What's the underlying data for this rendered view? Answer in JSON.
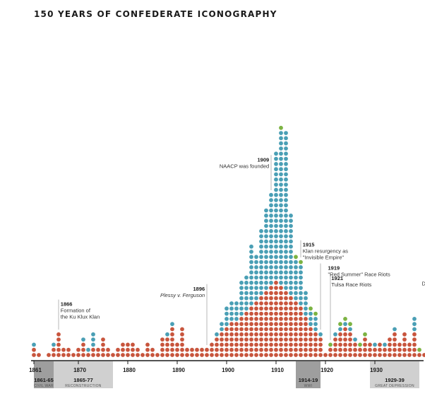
{
  "chart_data": {
    "type": "dot-histogram",
    "title": "150 YEARS OF CONFEDERATE ICONOGRAPHY",
    "colors": {
      "red": "#c8553d",
      "blue": "#4a9fb5",
      "green": "#7cb342",
      "axis": "#1a1a1a",
      "era": "#d0d0d0",
      "era_dark": "#9e9e9e",
      "guide": "#999999"
    },
    "x_range": [
      1861,
      1940
    ],
    "ticks": [
      "1861",
      "1870",
      "1880",
      "1890",
      "1900",
      "1910",
      "1920",
      "1930"
    ],
    "tick_years": [
      1861,
      1870,
      1880,
      1890,
      1900,
      1910,
      1920,
      1930
    ],
    "eras": [
      {
        "start": 1861,
        "end": 1865,
        "label": "1861-65",
        "sub": "CIVIL WAR",
        "shade": "dark"
      },
      {
        "start": 1865,
        "end": 1877,
        "label": "1865-77",
        "sub": "RECONSTRUCTION",
        "shade": "light"
      },
      {
        "start": 1914,
        "end": 1919,
        "label": "1914-19",
        "sub": "WWI",
        "shade": "dark"
      },
      {
        "start": 1929,
        "end": 1939,
        "label": "1929-39",
        "sub": "GREAT DEPRESSION",
        "shade": "light"
      }
    ],
    "columns": [
      {
        "year": 1861,
        "red": 2,
        "blue": 1,
        "green": 0
      },
      {
        "year": 1862,
        "red": 1,
        "blue": 0,
        "green": 0
      },
      {
        "year": 1864,
        "red": 1,
        "blue": 0,
        "green": 0
      },
      {
        "year": 1865,
        "red": 2,
        "blue": 1,
        "green": 0
      },
      {
        "year": 1866,
        "red": 5,
        "blue": 0,
        "green": 0
      },
      {
        "year": 1867,
        "red": 2,
        "blue": 0,
        "green": 0
      },
      {
        "year": 1868,
        "red": 2,
        "blue": 0,
        "green": 0
      },
      {
        "year": 1869,
        "red": 1,
        "blue": 0,
        "green": 0
      },
      {
        "year": 1870,
        "red": 2,
        "blue": 0,
        "green": 0
      },
      {
        "year": 1871,
        "red": 3,
        "blue": 1,
        "green": 0
      },
      {
        "year": 1872,
        "red": 1,
        "blue": 1,
        "green": 0
      },
      {
        "year": 1873,
        "red": 2,
        "blue": 3,
        "green": 0
      },
      {
        "year": 1874,
        "red": 2,
        "blue": 0,
        "green": 0
      },
      {
        "year": 1875,
        "red": 4,
        "blue": 0,
        "green": 0
      },
      {
        "year": 1876,
        "red": 2,
        "blue": 0,
        "green": 0
      },
      {
        "year": 1877,
        "red": 1,
        "blue": 0,
        "green": 0
      },
      {
        "year": 1878,
        "red": 2,
        "blue": 0,
        "green": 0
      },
      {
        "year": 1879,
        "red": 3,
        "blue": 0,
        "green": 0
      },
      {
        "year": 1880,
        "red": 3,
        "blue": 0,
        "green": 0
      },
      {
        "year": 1881,
        "red": 3,
        "blue": 0,
        "green": 0
      },
      {
        "year": 1882,
        "red": 2,
        "blue": 0,
        "green": 0
      },
      {
        "year": 1883,
        "red": 1,
        "blue": 0,
        "green": 0
      },
      {
        "year": 1884,
        "red": 3,
        "blue": 0,
        "green": 0
      },
      {
        "year": 1885,
        "red": 2,
        "blue": 0,
        "green": 0
      },
      {
        "year": 1886,
        "red": 1,
        "blue": 0,
        "green": 0
      },
      {
        "year": 1887,
        "red": 4,
        "blue": 0,
        "green": 0
      },
      {
        "year": 1888,
        "red": 4,
        "blue": 1,
        "green": 0
      },
      {
        "year": 1889,
        "red": 6,
        "blue": 1,
        "green": 0
      },
      {
        "year": 1890,
        "red": 3,
        "blue": 0,
        "green": 0
      },
      {
        "year": 1891,
        "red": 6,
        "blue": 0,
        "green": 0
      },
      {
        "year": 1892,
        "red": 2,
        "blue": 0,
        "green": 0
      },
      {
        "year": 1893,
        "red": 2,
        "blue": 0,
        "green": 0
      },
      {
        "year": 1894,
        "red": 2,
        "blue": 0,
        "green": 0
      },
      {
        "year": 1895,
        "red": 2,
        "blue": 0,
        "green": 0
      },
      {
        "year": 1896,
        "red": 2,
        "blue": 0,
        "green": 0
      },
      {
        "year": 1897,
        "red": 3,
        "blue": 0,
        "green": 0
      },
      {
        "year": 1898,
        "red": 4,
        "blue": 1,
        "green": 0
      },
      {
        "year": 1899,
        "red": 5,
        "blue": 2,
        "green": 0
      },
      {
        "year": 1900,
        "red": 6,
        "blue": 4,
        "green": 0
      },
      {
        "year": 1901,
        "red": 7,
        "blue": 4,
        "green": 0
      },
      {
        "year": 1902,
        "red": 7,
        "blue": 4,
        "green": 0
      },
      {
        "year": 1903,
        "red": 8,
        "blue": 7,
        "green": 0
      },
      {
        "year": 1904,
        "red": 9,
        "blue": 7,
        "green": 0
      },
      {
        "year": 1905,
        "red": 10,
        "blue": 12,
        "green": 0
      },
      {
        "year": 1906,
        "red": 11,
        "blue": 9,
        "green": 0
      },
      {
        "year": 1907,
        "red": 12,
        "blue": 13,
        "green": 0
      },
      {
        "year": 1908,
        "red": 13,
        "blue": 16,
        "green": 0
      },
      {
        "year": 1909,
        "red": 14,
        "blue": 18,
        "green": 0
      },
      {
        "year": 1910,
        "red": 15,
        "blue": 25,
        "green": 0
      },
      {
        "year": 1911,
        "red": 14,
        "blue": 30,
        "green": 1
      },
      {
        "year": 1912,
        "red": 13,
        "blue": 31,
        "green": 0
      },
      {
        "year": 1913,
        "red": 12,
        "blue": 16,
        "green": 0
      },
      {
        "year": 1914,
        "red": 11,
        "blue": 8,
        "green": 1
      },
      {
        "year": 1915,
        "red": 10,
        "blue": 8,
        "green": 1
      },
      {
        "year": 1916,
        "red": 8,
        "blue": 5,
        "green": 0
      },
      {
        "year": 1917,
        "red": 6,
        "blue": 3,
        "green": 1
      },
      {
        "year": 1918,
        "red": 5,
        "blue": 3,
        "green": 1
      },
      {
        "year": 1919,
        "red": 4,
        "blue": 1,
        "green": 0
      },
      {
        "year": 1920,
        "red": 1,
        "blue": 0,
        "green": 0
      },
      {
        "year": 1921,
        "red": 2,
        "blue": 0,
        "green": 1
      },
      {
        "year": 1922,
        "red": 4,
        "blue": 1,
        "green": 0
      },
      {
        "year": 1923,
        "red": 5,
        "blue": 1,
        "green": 1
      },
      {
        "year": 1924,
        "red": 6,
        "blue": 1,
        "green": 1
      },
      {
        "year": 1925,
        "red": 5,
        "blue": 1,
        "green": 1
      },
      {
        "year": 1926,
        "red": 3,
        "blue": 1,
        "green": 0
      },
      {
        "year": 1927,
        "red": 2,
        "blue": 0,
        "green": 1
      },
      {
        "year": 1928,
        "red": 4,
        "blue": 0,
        "green": 1
      },
      {
        "year": 1929,
        "red": 3,
        "blue": 0,
        "green": 0
      },
      {
        "year": 1930,
        "red": 2,
        "blue": 1,
        "green": 0
      },
      {
        "year": 1931,
        "red": 3,
        "blue": 0,
        "green": 0
      },
      {
        "year": 1932,
        "red": 2,
        "blue": 1,
        "green": 0
      },
      {
        "year": 1933,
        "red": 4,
        "blue": 0,
        "green": 0
      },
      {
        "year": 1934,
        "red": 5,
        "blue": 1,
        "green": 0
      },
      {
        "year": 1935,
        "red": 3,
        "blue": 0,
        "green": 0
      },
      {
        "year": 1936,
        "red": 5,
        "blue": 0,
        "green": 0
      },
      {
        "year": 1937,
        "red": 3,
        "blue": 0,
        "green": 0
      },
      {
        "year": 1938,
        "red": 5,
        "blue": 3,
        "green": 0
      },
      {
        "year": 1939,
        "red": 1,
        "blue": 0,
        "green": 1
      },
      {
        "year": 1940,
        "red": 1,
        "blue": 0,
        "green": 0
      }
    ],
    "annotations": [
      {
        "year": 1866,
        "label": "1866",
        "lines": [
          "Formation of",
          "the Ku Klux Klan"
        ],
        "italic": false,
        "text_side": "right",
        "text_year": 1866.4,
        "text_row": 9.5
      },
      {
        "year": 1896,
        "label": "1896",
        "lines": [
          "Plessy v. Ferguson"
        ],
        "italic": true,
        "text_side": "left",
        "text_year": 1895.6,
        "text_row": 12.5
      },
      {
        "year": 1909,
        "label": "1909",
        "lines": [
          "NAACP was founded"
        ],
        "italic": false,
        "text_side": "left",
        "text_year": 1908.6,
        "text_row": 37.5
      },
      {
        "year": 1915,
        "label": "1915",
        "lines": [
          "Klan resurgency as",
          "\"Invisible Empire\""
        ],
        "italic": false,
        "text_side": "right",
        "text_year": 1915.4,
        "text_row": 21
      },
      {
        "year": 1919,
        "label": "1919",
        "lines": [
          "\"Red Summer\" Race Riots"
        ],
        "italic": false,
        "text_side": "right",
        "text_year": 1920.5,
        "text_row": 16.5
      },
      {
        "year": 1921,
        "label": "1921",
        "lines": [
          "Tulsa Race Riots"
        ],
        "italic": false,
        "text_side": "right",
        "text_year": 1921.2,
        "text_row": 14.5
      },
      {
        "year": 1939,
        "label": "",
        "lines": [
          "Detroit I"
        ],
        "italic": false,
        "text_side": "right",
        "text_year": 1939.5,
        "text_row": 13.5
      }
    ]
  }
}
